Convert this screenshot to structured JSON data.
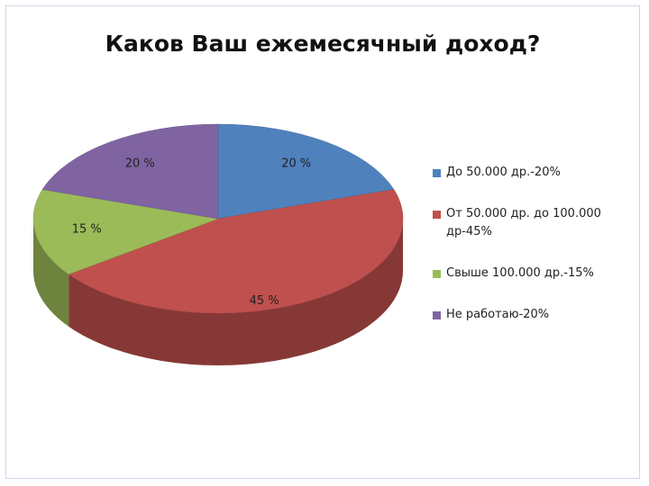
{
  "chart_data": {
    "type": "pie",
    "title": "Каков Ваш ежемесячный доход?",
    "categories": [
      "До 50.000 др.-20%",
      "От 50.000 др. до 100.000 др-45%",
      "Свыше 100.000 др.-15%",
      "Не работаю-20%"
    ],
    "values": [
      20,
      45,
      15,
      20
    ],
    "value_labels": [
      "20 %",
      "45 %",
      "15 %",
      "20 %"
    ],
    "colors": [
      "#4f81bd",
      "#c0504d",
      "#9bbb59",
      "#8064a2"
    ],
    "legend": "right"
  }
}
